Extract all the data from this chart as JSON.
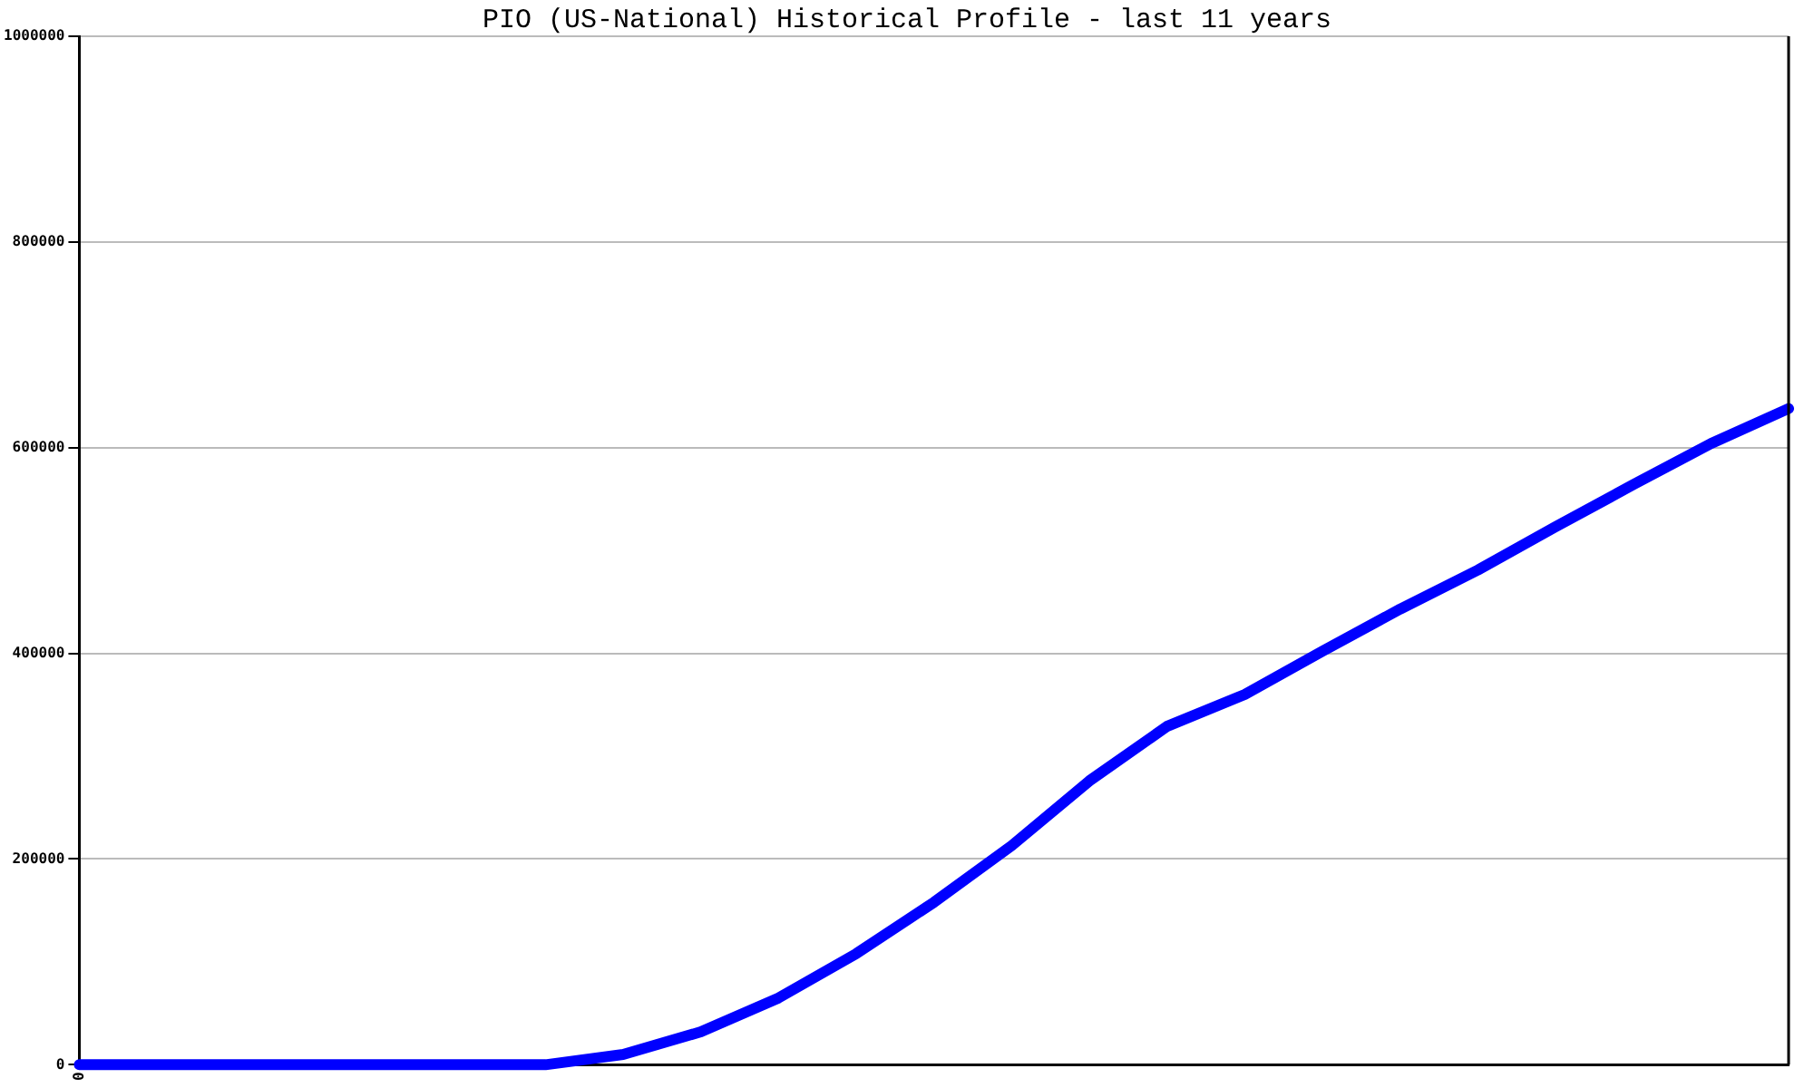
{
  "chart_data": {
    "type": "line",
    "title": "PIO (US-National) Historical Profile - last 11 years",
    "categories": [
      "0",
      null,
      null,
      null,
      null,
      null,
      null,
      null,
      null,
      null,
      null,
      null,
      null,
      null,
      null,
      null,
      null,
      null,
      null,
      null,
      null,
      null,
      null
    ],
    "series": [
      {
        "color": "#0000ff",
        "values": [
          0,
          0,
          0,
          0,
          0,
          0,
          0,
          10000,
          32000,
          65000,
          108000,
          158000,
          213000,
          276000,
          329000,
          360000,
          402000,
          443000,
          481000,
          523000,
          564000,
          604000,
          638000
        ]
      }
    ],
    "ylim": [
      0,
      1000000
    ],
    "yticks": [
      0,
      200000,
      400000,
      600000,
      800000,
      1000000
    ],
    "grid": "y",
    "legend": false,
    "marker": "none",
    "line_style": "solid"
  }
}
